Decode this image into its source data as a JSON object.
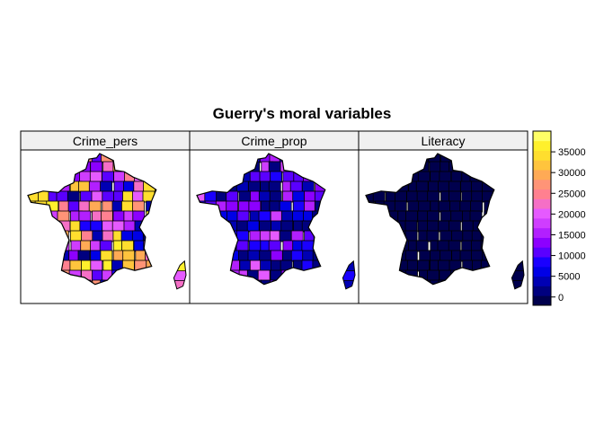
{
  "chart_data": {
    "type": "heatmap",
    "title": "Guerry's moral variables",
    "panels": [
      {
        "name": "Crime_pers",
        "typical_value": 19000,
        "value_range": [
          2200,
          37000
        ]
      },
      {
        "name": "Crime_prop",
        "typical_value": 8000,
        "value_range": [
          1400,
          20000
        ]
      },
      {
        "name": "Literacy",
        "typical_value": 40,
        "value_range": [
          12,
          74
        ]
      }
    ],
    "colorkey": {
      "range": [
        -2000,
        40000
      ],
      "ticks": [
        0,
        5000,
        10000,
        15000,
        20000,
        25000,
        30000,
        35000
      ],
      "tick_labels": [
        "0",
        "5000",
        "10000",
        "15000",
        "20000",
        "25000",
        "30000",
        "35000"
      ],
      "palette": [
        "#00004D",
        "#00007F",
        "#0000B3",
        "#0000E6",
        "#1A00FF",
        "#5A00FF",
        "#8C00FF",
        "#B21FFF",
        "#CF3DFF",
        "#E55AFF",
        "#F56FC6",
        "#FF8090",
        "#FF9477",
        "#FFAA55",
        "#FFC43D",
        "#FFDE2E",
        "#FFF02C",
        "#FFFF66"
      ]
    }
  }
}
